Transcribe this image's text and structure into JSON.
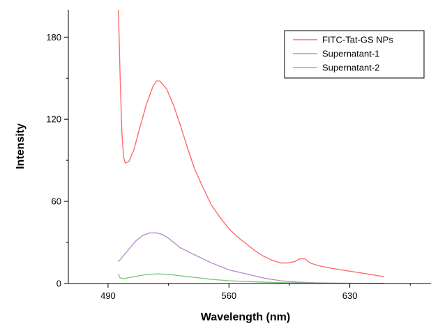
{
  "chart_data": {
    "type": "line",
    "xlabel": "Wavelength (nm)",
    "ylabel": "Intensity",
    "xlim": [
      467,
      677
    ],
    "ylim": [
      0,
      200
    ],
    "xticks": [
      490,
      560,
      630
    ],
    "yticks": [
      0,
      60,
      120,
      180
    ],
    "grid": false,
    "legend_position": "top-right",
    "series": [
      {
        "name": "FITC-Tat-GS NPs",
        "color": "#ff6b6b",
        "x": [
          496,
          497,
          498,
          499,
          500,
          502,
          505,
          508,
          512,
          516,
          518,
          520,
          524,
          528,
          532,
          536,
          540,
          545,
          550,
          555,
          560,
          565,
          570,
          575,
          580,
          585,
          590,
          594,
          598,
          601,
          604,
          607,
          612,
          620,
          630,
          640,
          650
        ],
        "y": [
          200,
          150,
          110,
          92,
          88,
          89,
          98,
          112,
          130,
          144,
          148,
          148,
          142,
          130,
          115,
          99,
          84,
          70,
          57,
          48,
          40,
          34,
          29,
          24,
          20,
          17,
          15,
          15,
          16,
          18,
          18,
          15,
          13,
          11,
          9,
          7,
          5
        ]
      },
      {
        "name": "Supernatant-1",
        "color": "#b98fd0",
        "x": [
          496,
          498,
          502,
          506,
          510,
          514,
          518,
          521,
          524,
          528,
          532,
          540,
          550,
          560,
          570,
          580,
          590,
          600,
          610,
          620,
          630,
          640,
          650
        ],
        "y": [
          16,
          19,
          25,
          31,
          35,
          37,
          37,
          36,
          34,
          30,
          26,
          21,
          15,
          10,
          7,
          4,
          2,
          1,
          0.5,
          0.3,
          0.2,
          0.1,
          0
        ]
      },
      {
        "name": "Supernatant-2",
        "color": "#7fc77f",
        "x": [
          496,
          497,
          499,
          505,
          512,
          519,
          526,
          533,
          540,
          550,
          560,
          570,
          580,
          590,
          600,
          610,
          620,
          630,
          640,
          650
        ],
        "y": [
          7,
          4,
          3.5,
          5,
          6.5,
          7,
          6.5,
          5.5,
          4.5,
          3,
          2,
          1.5,
          1,
          0.6,
          0.4,
          0.3,
          0.2,
          0.1,
          0.1,
          0
        ]
      }
    ]
  }
}
